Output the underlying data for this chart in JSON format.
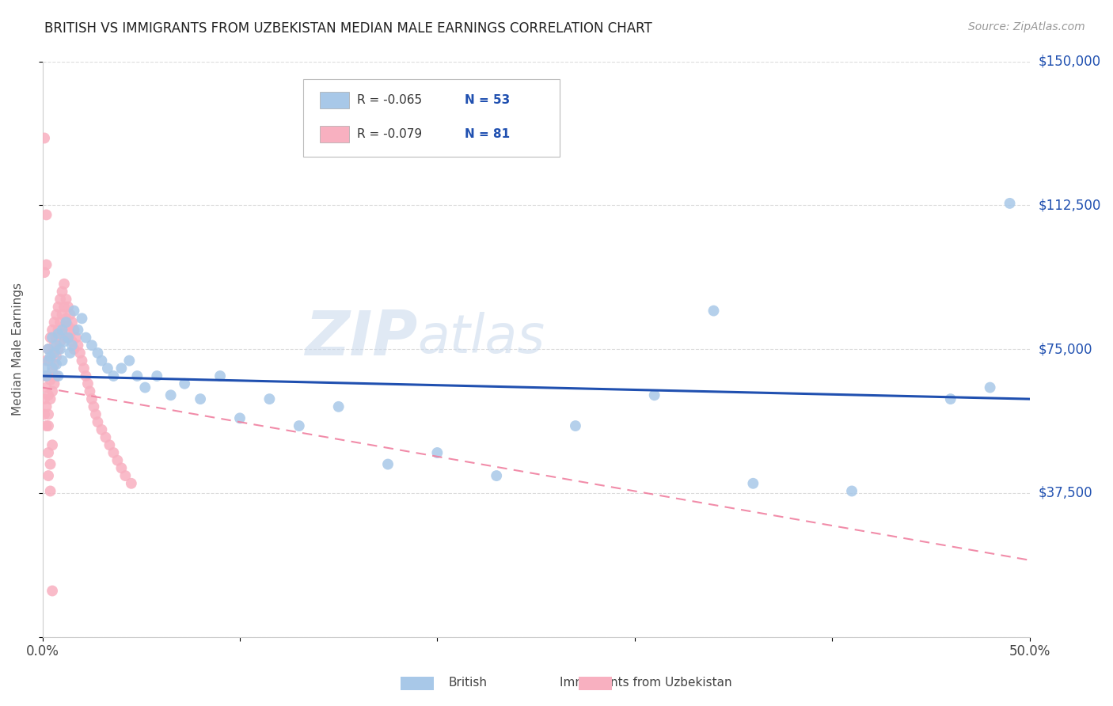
{
  "title": "BRITISH VS IMMIGRANTS FROM UZBEKISTAN MEDIAN MALE EARNINGS CORRELATION CHART",
  "source": "Source: ZipAtlas.com",
  "ylabel": "Median Male Earnings",
  "xlim": [
    0.0,
    0.5
  ],
  "ylim": [
    0,
    150000
  ],
  "yticks": [
    0,
    37500,
    75000,
    112500,
    150000
  ],
  "ytick_labels": [
    "",
    "$37,500",
    "$75,000",
    "$112,500",
    "$150,000"
  ],
  "grid_color": "#cccccc",
  "background_color": "#ffffff",
  "british_color": "#a8c8e8",
  "uzbekistan_color": "#f8b0c0",
  "british_line_color": "#2050b0",
  "uzbekistan_line_color": "#f080a0",
  "legend_R_label1": "R = -0.065",
  "legend_N_label1": "N = 53",
  "legend_R_label2": "R = -0.079",
  "legend_N_label2": "N = 81",
  "british_scatter_x": [
    0.001,
    0.002,
    0.003,
    0.003,
    0.004,
    0.005,
    0.005,
    0.006,
    0.007,
    0.007,
    0.008,
    0.008,
    0.009,
    0.01,
    0.01,
    0.011,
    0.012,
    0.013,
    0.014,
    0.015,
    0.016,
    0.018,
    0.02,
    0.022,
    0.025,
    0.028,
    0.03,
    0.033,
    0.036,
    0.04,
    0.044,
    0.048,
    0.052,
    0.058,
    0.065,
    0.072,
    0.08,
    0.09,
    0.1,
    0.115,
    0.13,
    0.15,
    0.175,
    0.2,
    0.23,
    0.27,
    0.31,
    0.36,
    0.41,
    0.46,
    0.34,
    0.49,
    0.48
  ],
  "british_scatter_y": [
    70000,
    68000,
    75000,
    72000,
    73000,
    78000,
    70000,
    74000,
    76000,
    71000,
    79000,
    68000,
    75000,
    80000,
    72000,
    77000,
    82000,
    78000,
    74000,
    76000,
    85000,
    80000,
    83000,
    78000,
    76000,
    74000,
    72000,
    70000,
    68000,
    70000,
    72000,
    68000,
    65000,
    68000,
    63000,
    66000,
    62000,
    68000,
    57000,
    62000,
    55000,
    60000,
    45000,
    48000,
    42000,
    55000,
    63000,
    40000,
    38000,
    62000,
    85000,
    113000,
    65000
  ],
  "uzbekistan_scatter_x": [
    0.001,
    0.001,
    0.001,
    0.002,
    0.002,
    0.002,
    0.002,
    0.003,
    0.003,
    0.003,
    0.003,
    0.004,
    0.004,
    0.004,
    0.004,
    0.005,
    0.005,
    0.005,
    0.005,
    0.006,
    0.006,
    0.006,
    0.006,
    0.007,
    0.007,
    0.007,
    0.007,
    0.008,
    0.008,
    0.008,
    0.009,
    0.009,
    0.009,
    0.01,
    0.01,
    0.01,
    0.011,
    0.011,
    0.011,
    0.012,
    0.012,
    0.012,
    0.013,
    0.013,
    0.014,
    0.014,
    0.015,
    0.015,
    0.016,
    0.016,
    0.017,
    0.018,
    0.019,
    0.02,
    0.021,
    0.022,
    0.023,
    0.024,
    0.025,
    0.026,
    0.027,
    0.028,
    0.03,
    0.032,
    0.034,
    0.036,
    0.038,
    0.04,
    0.042,
    0.045,
    0.001,
    0.001,
    0.002,
    0.002,
    0.003,
    0.003,
    0.003,
    0.004,
    0.004,
    0.005,
    0.005
  ],
  "uzbekistan_scatter_y": [
    68000,
    62000,
    58000,
    72000,
    65000,
    60000,
    55000,
    75000,
    68000,
    63000,
    58000,
    78000,
    72000,
    67000,
    62000,
    80000,
    74000,
    69000,
    64000,
    82000,
    76000,
    71000,
    66000,
    84000,
    78000,
    73000,
    68000,
    86000,
    80000,
    75000,
    88000,
    82000,
    77000,
    90000,
    84000,
    79000,
    92000,
    86000,
    81000,
    88000,
    83000,
    78000,
    86000,
    81000,
    84000,
    79000,
    82000,
    77000,
    80000,
    75000,
    78000,
    76000,
    74000,
    72000,
    70000,
    68000,
    66000,
    64000,
    62000,
    60000,
    58000,
    56000,
    54000,
    52000,
    50000,
    48000,
    46000,
    44000,
    42000,
    40000,
    130000,
    95000,
    97000,
    110000,
    55000,
    48000,
    42000,
    38000,
    45000,
    50000,
    12000
  ]
}
